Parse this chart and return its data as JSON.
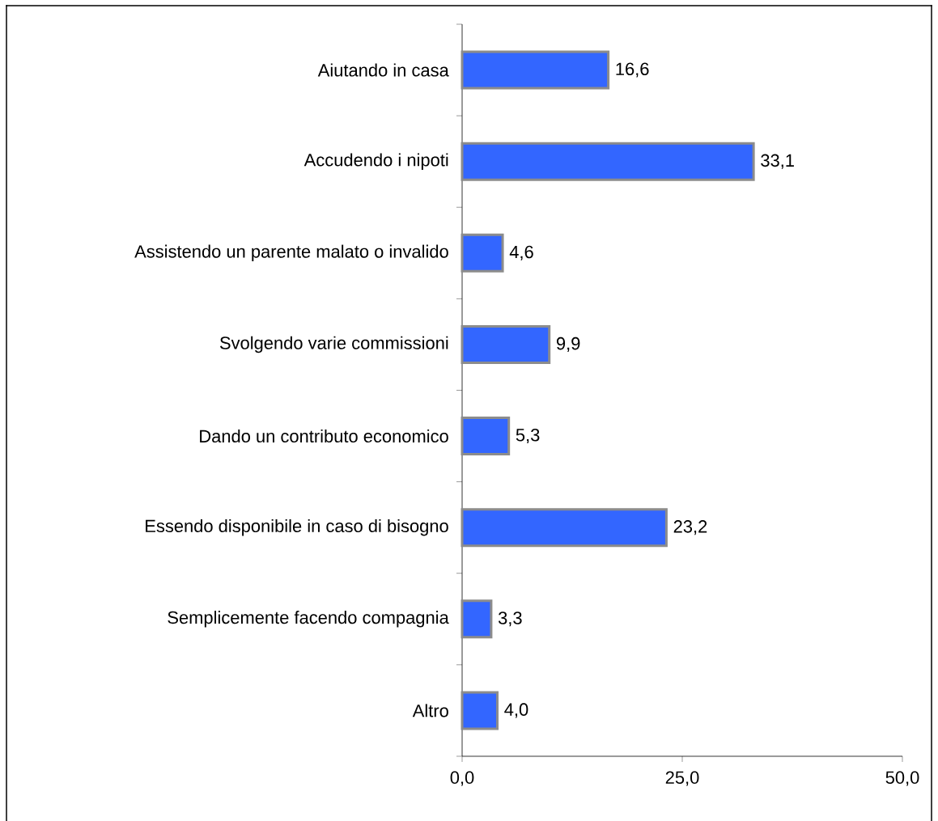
{
  "chart_data": {
    "type": "bar",
    "orientation": "horizontal",
    "categories": [
      "Aiutando in casa",
      "Accudendo i nipoti",
      "Assistendo un parente malato o invalido",
      "Svolgendo varie commissioni",
      "Dando un contributo economico",
      "Essendo disponibile in caso di bisogno",
      "Semplicemente facendo compagnia",
      "Altro"
    ],
    "values": [
      16.6,
      33.1,
      4.6,
      9.9,
      5.3,
      23.2,
      3.3,
      4.0
    ],
    "value_labels": [
      "16,6",
      "33,1",
      "4,6",
      "9,9",
      "5,3",
      "23,2",
      "3,3",
      "4,0"
    ],
    "color": "#3366ff",
    "xlim": [
      0,
      50
    ],
    "xticks": [
      {
        "value": 0,
        "label": "0,0"
      },
      {
        "value": 25,
        "label": "25,0"
      },
      {
        "value": 50,
        "label": "50,0"
      }
    ]
  }
}
